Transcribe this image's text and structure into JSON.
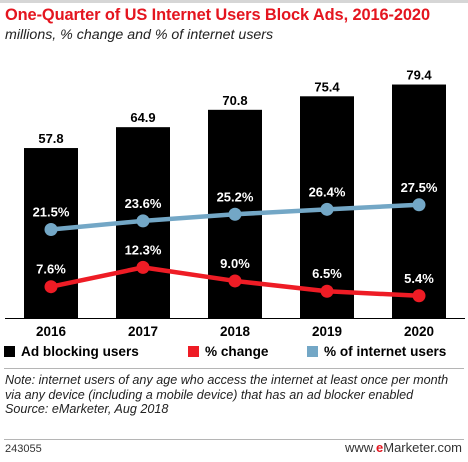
{
  "title": "One-Quarter of US Internet Users Block Ads, 2016-2020",
  "subtitle": "millions, % change and % of internet users",
  "chart_data": {
    "type": "bar",
    "categories": [
      "2016",
      "2017",
      "2018",
      "2019",
      "2020"
    ],
    "series": [
      {
        "name": "Ad blocking users",
        "kind": "bar",
        "color": "#000000",
        "values": [
          57.8,
          64.9,
          70.8,
          75.4,
          79.4
        ],
        "labels": [
          "57.8",
          "64.9",
          "70.8",
          "75.4",
          "79.4"
        ]
      },
      {
        "name": "% change",
        "kind": "line",
        "color": "#ee1c25",
        "values": [
          7.6,
          12.3,
          9.0,
          6.5,
          5.4
        ],
        "labels": [
          "7.6%",
          "12.3%",
          "9.0%",
          "6.5%",
          "5.4%"
        ]
      },
      {
        "name": "% of internet users",
        "kind": "line",
        "color": "#73a7c6",
        "values": [
          21.5,
          23.6,
          25.2,
          26.4,
          27.5
        ],
        "labels": [
          "21.5%",
          "23.6%",
          "25.2%",
          "26.4%",
          "27.5%"
        ]
      }
    ],
    "bar_ylim": [
      0,
      84
    ],
    "line_ylim": [
      0,
      60
    ],
    "grid": false,
    "legend": "bottom"
  },
  "note": "Note: internet users of any age who access the internet at least once per month via any device (including a mobile device) that has an ad blocker enabled",
  "source": "Source: eMarketer, Aug 2018",
  "chart_id": "243055",
  "brand": {
    "prefix": "www.",
    "e": "e",
    "rest": "Marketer",
    "suffix": ".com"
  }
}
